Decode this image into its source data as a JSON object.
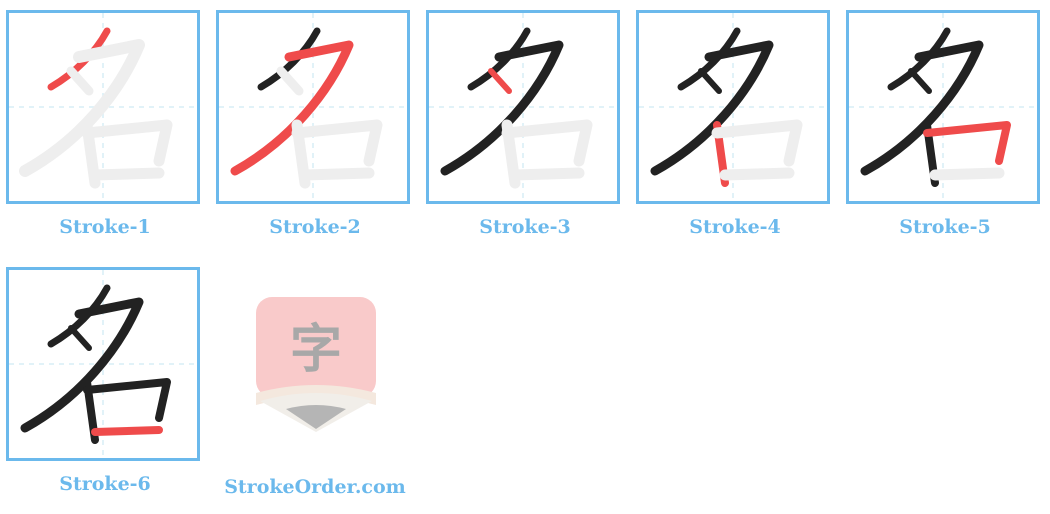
{
  "character": "名",
  "colors": {
    "border": "#6bb9ec",
    "done": "#222222",
    "current": "#ef4b4b",
    "ghost": "#eeeeee",
    "guide": "#d7eef6"
  },
  "steps": [
    {
      "label": "Stroke-1"
    },
    {
      "label": "Stroke-2"
    },
    {
      "label": "Stroke-3"
    },
    {
      "label": "Stroke-4"
    },
    {
      "label": "Stroke-5"
    },
    {
      "label": "Stroke-6"
    }
  ],
  "brand": {
    "label": "StrokeOrder.com",
    "logo_glyph": "字"
  }
}
